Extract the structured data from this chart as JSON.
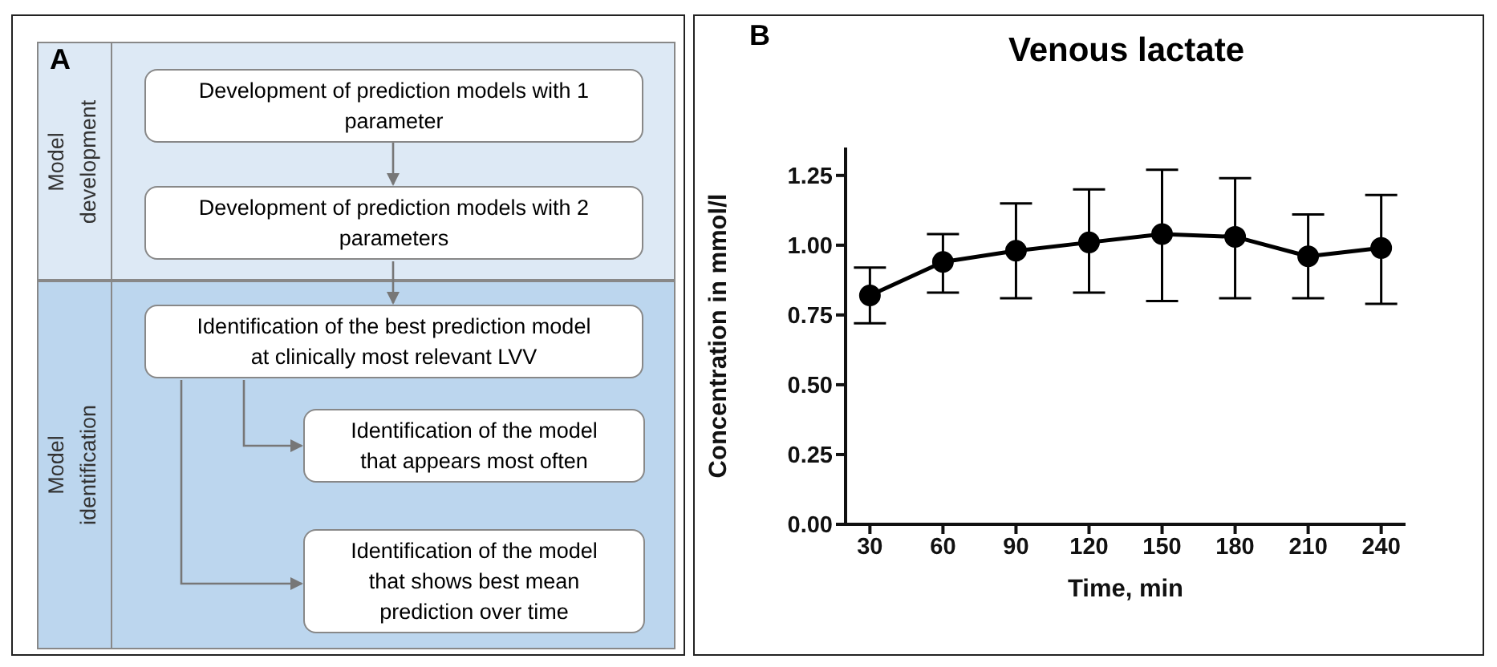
{
  "chart_data": [
    {
      "type": "other",
      "annotations": [
        "A",
        "Model development",
        "Model identification",
        "Development of prediction models with 1 parameter",
        "Development of prediction models with 2 parameters",
        "Identification of the best prediction model at clinically most relevant LVV",
        "Identification of the model that appears most often",
        "Identification of the model that shows best mean prediction over time"
      ]
    },
    {
      "type": "line",
      "title": "Venous lactate",
      "annotations": [
        "B"
      ],
      "xlabel": "Time, min",
      "ylabel": "Concentration in mmol/l",
      "x": [
        30,
        60,
        90,
        120,
        150,
        180,
        210,
        240
      ],
      "series": [
        {
          "color": "#000000",
          "values": [
            0.82,
            0.94,
            0.98,
            1.01,
            1.04,
            1.03,
            0.96,
            0.99
          ],
          "errors": [
            [
              0.72,
              0.92
            ],
            [
              0.83,
              1.04
            ],
            [
              0.81,
              1.15
            ],
            [
              0.83,
              1.2
            ],
            [
              0.8,
              1.27
            ],
            [
              0.81,
              1.24
            ],
            [
              0.81,
              1.11
            ],
            [
              0.79,
              1.18
            ]
          ]
        }
      ],
      "xlim": [
        20,
        250
      ],
      "xticks": [
        30,
        60,
        90,
        120,
        150,
        180,
        210,
        240
      ],
      "ylim": [
        0,
        1.35
      ],
      "yticks": [
        {
          "value": 0,
          "label": "0.00"
        },
        {
          "value": 0.25,
          "label": "0.25"
        },
        {
          "value": 0.5,
          "label": "0.50"
        },
        {
          "value": 0.75,
          "label": "0.75"
        },
        {
          "value": 1,
          "label": "1.00"
        },
        {
          "value": 1.25,
          "label": "1.25"
        }
      ],
      "marker": "circle",
      "line_style": "solid",
      "grid": false,
      "legend": false
    }
  ]
}
